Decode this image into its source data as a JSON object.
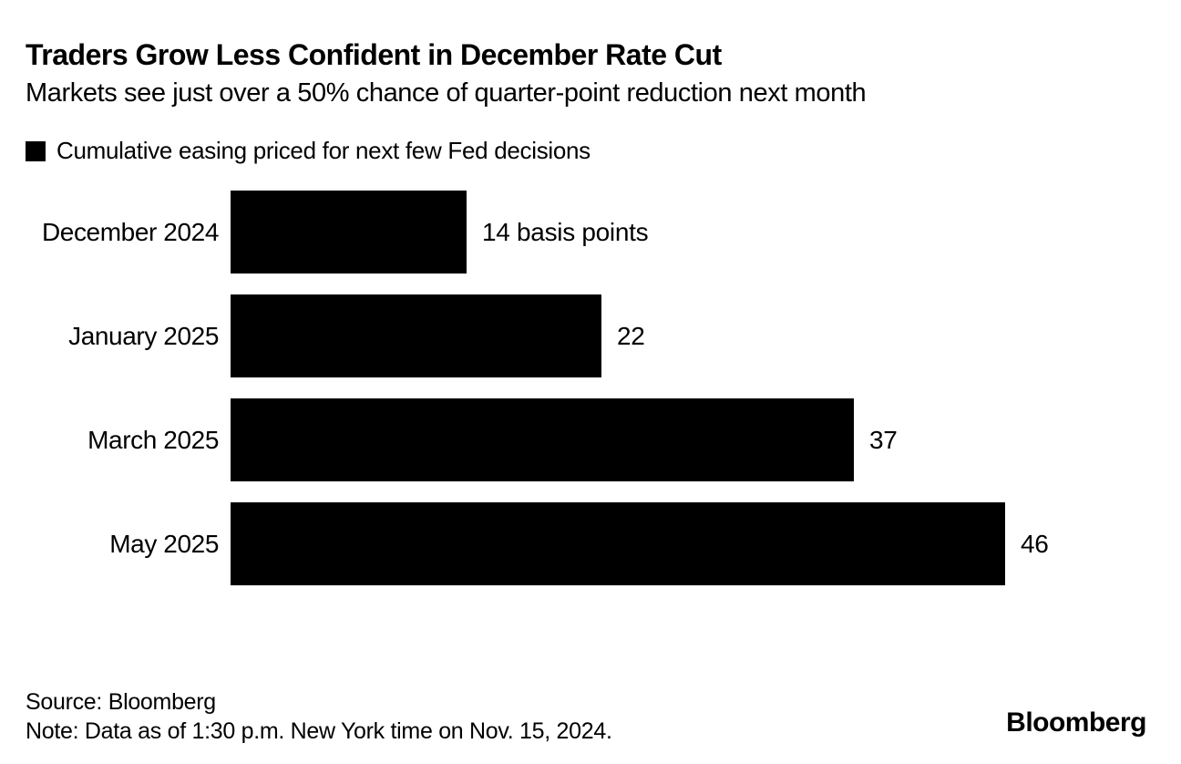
{
  "title": "Traders Grow Less Confident in December Rate Cut",
  "subtitle": "Markets see just over a 50% chance of quarter-point reduction next month",
  "legend": {
    "swatch_icon": "black-square-swatch",
    "label": "Cumulative easing priced for next few Fed decisions",
    "swatch_color": "#000000"
  },
  "chart_data": {
    "type": "bar",
    "orientation": "horizontal",
    "title": "Traders Grow Less Confident in December Rate Cut",
    "subtitle": "Markets see just over a 50% chance of quarter-point reduction next month",
    "series_name": "Cumulative easing priced for next few Fed decisions",
    "categories": [
      "December 2024",
      "January 2025",
      "March 2025",
      "May 2025"
    ],
    "values": [
      14,
      22,
      37,
      46
    ],
    "value_labels": [
      "14 basis points",
      "22",
      "37",
      "46"
    ],
    "unit": "basis points",
    "xlim": [
      0,
      46
    ],
    "grid": false,
    "bar_color": "#000000",
    "legend_position": "top-left"
  },
  "footer": {
    "source": "Source: Bloomberg",
    "note": "Note: Data as of 1:30 p.m. New York time on Nov. 15, 2024.",
    "brand": "Bloomberg"
  },
  "colors": {
    "background": "#ffffff",
    "text": "#000000",
    "bar": "#000000"
  }
}
